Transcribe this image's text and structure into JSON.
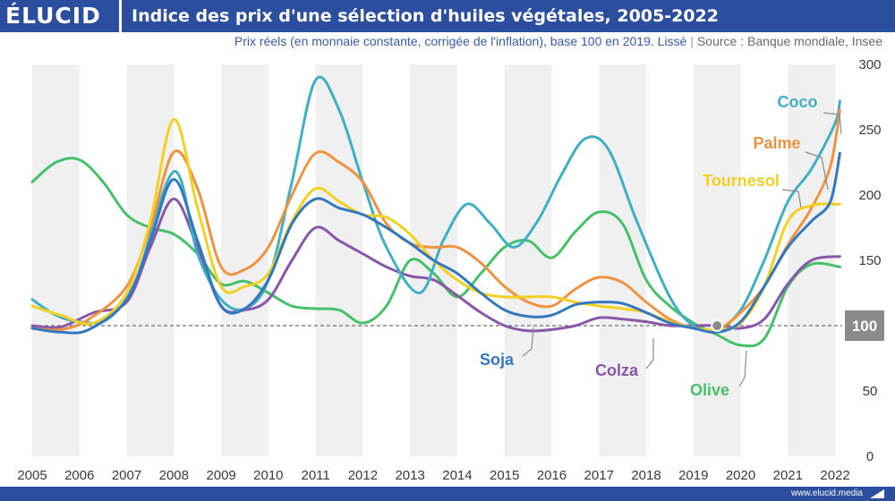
{
  "header": {
    "logo": "ÉLUCID",
    "title": "Indice des prix d'une sélection d'huiles végétales, 2005-2022"
  },
  "subtitle": {
    "text": "Prix réels (en monnaie constante, corrigée de l'inflation), base 100 en 2019. Lissé",
    "separator": "|",
    "source": "Source : Banque mondiale, Insee"
  },
  "footer": {
    "url": "www.elucid.media"
  },
  "chart_data": {
    "type": "line",
    "title": "Indice des prix d'une sélection d'huiles végétales, 2005-2022",
    "subtitle": "Prix réels (en monnaie constante, corrigée de l'inflation), base 100 en 2019. Lissé",
    "x_ticks": [
      "2005",
      "2006",
      "2007",
      "2008",
      "2009",
      "2010",
      "2011",
      "2012",
      "2013",
      "2014",
      "2015",
      "2016",
      "2017",
      "2018",
      "2019",
      "2020",
      "2021",
      "2022"
    ],
    "y_ticks": [
      "0",
      "50",
      "100",
      "150",
      "200",
      "250",
      "300"
    ],
    "xlim": [
      2005,
      2022.15
    ],
    "ylim": [
      0,
      300
    ],
    "grid": "alternating-columns",
    "baseline": {
      "value": 100,
      "label": "100",
      "style": "dashed"
    },
    "marker": {
      "x": 2019.5,
      "y": 100
    },
    "series": [
      {
        "name": "Coco",
        "color": "#3fb0c4",
        "points": [
          [
            2005,
            120
          ],
          [
            2005.5,
            108
          ],
          [
            2006,
            103
          ],
          [
            2006.6,
            105
          ],
          [
            2007.2,
            135
          ],
          [
            2008,
            218
          ],
          [
            2008.5,
            155
          ],
          [
            2009,
            120
          ],
          [
            2009.5,
            113
          ],
          [
            2010,
            135
          ],
          [
            2010.5,
            210
          ],
          [
            2011,
            288
          ],
          [
            2011.5,
            265
          ],
          [
            2012,
            210
          ],
          [
            2012.5,
            160
          ],
          [
            2013.2,
            125
          ],
          [
            2013.7,
            165
          ],
          [
            2014.2,
            193
          ],
          [
            2014.7,
            178
          ],
          [
            2015.2,
            160
          ],
          [
            2015.7,
            180
          ],
          [
            2016.2,
            215
          ],
          [
            2016.7,
            243
          ],
          [
            2017.2,
            235
          ],
          [
            2017.8,
            180
          ],
          [
            2018.5,
            122
          ],
          [
            2019,
            100
          ],
          [
            2019.5,
            97
          ],
          [
            2020,
            112
          ],
          [
            2020.5,
            150
          ],
          [
            2021,
            195
          ],
          [
            2021.5,
            220
          ],
          [
            2022,
            255
          ],
          [
            2022.1,
            272
          ]
        ]
      },
      {
        "name": "Palme",
        "color": "#ef9340",
        "points": [
          [
            2005,
            98
          ],
          [
            2005.6,
            97
          ],
          [
            2006.2,
            105
          ],
          [
            2007,
            130
          ],
          [
            2007.5,
            175
          ],
          [
            2008,
            233
          ],
          [
            2008.5,
            205
          ],
          [
            2009,
            145
          ],
          [
            2009.5,
            143
          ],
          [
            2010,
            160
          ],
          [
            2010.5,
            200
          ],
          [
            2011,
            232
          ],
          [
            2011.5,
            225
          ],
          [
            2012,
            210
          ],
          [
            2012.5,
            178
          ],
          [
            2013,
            163
          ],
          [
            2013.5,
            160
          ],
          [
            2014,
            160
          ],
          [
            2014.5,
            148
          ],
          [
            2015,
            130
          ],
          [
            2015.5,
            118
          ],
          [
            2016,
            115
          ],
          [
            2016.5,
            128
          ],
          [
            2017,
            137
          ],
          [
            2017.5,
            133
          ],
          [
            2018,
            118
          ],
          [
            2018.5,
            105
          ],
          [
            2019,
            98
          ],
          [
            2019.5,
            97
          ],
          [
            2020,
            110
          ],
          [
            2020.5,
            130
          ],
          [
            2021,
            162
          ],
          [
            2021.5,
            190
          ],
          [
            2021.9,
            222
          ],
          [
            2022.1,
            265
          ]
        ]
      },
      {
        "name": "Tournesol",
        "color": "#f2d122",
        "points": [
          [
            2005,
            115
          ],
          [
            2005.6,
            108
          ],
          [
            2006.3,
            102
          ],
          [
            2007,
            125
          ],
          [
            2007.5,
            180
          ],
          [
            2008,
            258
          ],
          [
            2008.5,
            190
          ],
          [
            2009,
            130
          ],
          [
            2009.5,
            130
          ],
          [
            2010,
            140
          ],
          [
            2010.5,
            180
          ],
          [
            2011,
            205
          ],
          [
            2011.5,
            195
          ],
          [
            2012,
            185
          ],
          [
            2012.5,
            183
          ],
          [
            2013,
            170
          ],
          [
            2013.5,
            150
          ],
          [
            2014,
            135
          ],
          [
            2014.5,
            125
          ],
          [
            2015,
            122
          ],
          [
            2015.5,
            122
          ],
          [
            2016,
            122
          ],
          [
            2016.5,
            118
          ],
          [
            2017,
            115
          ],
          [
            2017.5,
            113
          ],
          [
            2018,
            110
          ],
          [
            2018.5,
            103
          ],
          [
            2019,
            98
          ],
          [
            2019.5,
            97
          ],
          [
            2020,
            102
          ],
          [
            2020.5,
            130
          ],
          [
            2021,
            180
          ],
          [
            2021.5,
            192
          ],
          [
            2022.1,
            193
          ]
        ]
      },
      {
        "name": "Soja",
        "color": "#3278c1",
        "points": [
          [
            2005,
            98
          ],
          [
            2005.6,
            95
          ],
          [
            2006.2,
            97
          ],
          [
            2007,
            120
          ],
          [
            2007.5,
            165
          ],
          [
            2008,
            212
          ],
          [
            2008.5,
            165
          ],
          [
            2009,
            115
          ],
          [
            2009.5,
            113
          ],
          [
            2010,
            135
          ],
          [
            2010.5,
            178
          ],
          [
            2011,
            197
          ],
          [
            2011.5,
            190
          ],
          [
            2012,
            185
          ],
          [
            2012.5,
            175
          ],
          [
            2013,
            163
          ],
          [
            2013.5,
            150
          ],
          [
            2014,
            140
          ],
          [
            2014.5,
            125
          ],
          [
            2015,
            112
          ],
          [
            2015.5,
            107
          ],
          [
            2016,
            108
          ],
          [
            2016.5,
            116
          ],
          [
            2017,
            118
          ],
          [
            2017.5,
            117
          ],
          [
            2018,
            110
          ],
          [
            2018.5,
            102
          ],
          [
            2019,
            98
          ],
          [
            2019.5,
            95
          ],
          [
            2020,
            103
          ],
          [
            2020.5,
            130
          ],
          [
            2021,
            160
          ],
          [
            2021.5,
            180
          ],
          [
            2021.9,
            195
          ],
          [
            2022.1,
            232
          ]
        ]
      },
      {
        "name": "Colza",
        "color": "#8a56a8",
        "points": [
          [
            2005,
            100
          ],
          [
            2005.6,
            99
          ],
          [
            2006.3,
            110
          ],
          [
            2007,
            118
          ],
          [
            2007.5,
            160
          ],
          [
            2008,
            197
          ],
          [
            2008.5,
            160
          ],
          [
            2009,
            115
          ],
          [
            2009.5,
            112
          ],
          [
            2010,
            120
          ],
          [
            2010.5,
            150
          ],
          [
            2011,
            175
          ],
          [
            2011.5,
            165
          ],
          [
            2012,
            155
          ],
          [
            2012.5,
            145
          ],
          [
            2013,
            138
          ],
          [
            2013.5,
            135
          ],
          [
            2014,
            123
          ],
          [
            2014.5,
            110
          ],
          [
            2015,
            100
          ],
          [
            2015.5,
            96
          ],
          [
            2016,
            97
          ],
          [
            2016.5,
            100
          ],
          [
            2017,
            106
          ],
          [
            2017.5,
            105
          ],
          [
            2018,
            103
          ],
          [
            2018.5,
            100
          ],
          [
            2019,
            100
          ],
          [
            2019.5,
            100
          ],
          [
            2020,
            98
          ],
          [
            2020.5,
            105
          ],
          [
            2021,
            132
          ],
          [
            2021.5,
            150
          ],
          [
            2022.1,
            153
          ]
        ]
      },
      {
        "name": "Olive",
        "color": "#46c16a",
        "points": [
          [
            2005,
            210
          ],
          [
            2005.5,
            225
          ],
          [
            2006,
            227
          ],
          [
            2006.5,
            210
          ],
          [
            2007,
            185
          ],
          [
            2007.5,
            175
          ],
          [
            2008,
            170
          ],
          [
            2008.5,
            155
          ],
          [
            2009,
            132
          ],
          [
            2009.5,
            134
          ],
          [
            2010,
            125
          ],
          [
            2010.5,
            115
          ],
          [
            2011,
            113
          ],
          [
            2011.5,
            112
          ],
          [
            2012,
            102
          ],
          [
            2012.5,
            115
          ],
          [
            2013,
            150
          ],
          [
            2013.5,
            140
          ],
          [
            2014,
            122
          ],
          [
            2014.5,
            140
          ],
          [
            2015,
            160
          ],
          [
            2015.5,
            165
          ],
          [
            2016,
            152
          ],
          [
            2016.5,
            172
          ],
          [
            2017,
            187
          ],
          [
            2017.5,
            178
          ],
          [
            2018,
            135
          ],
          [
            2018.5,
            115
          ],
          [
            2019,
            102
          ],
          [
            2019.5,
            93
          ],
          [
            2020,
            85
          ],
          [
            2020.5,
            90
          ],
          [
            2021,
            130
          ],
          [
            2021.5,
            147
          ],
          [
            2022.1,
            145
          ]
        ]
      }
    ],
    "labels": [
      {
        "series": "Coco",
        "text": "Coco"
      },
      {
        "series": "Palme",
        "text": "Palme"
      },
      {
        "series": "Tournesol",
        "text": "Tournesol"
      },
      {
        "series": "Soja",
        "text": "Soja"
      },
      {
        "series": "Colza",
        "text": "Colza"
      },
      {
        "series": "Olive",
        "text": "Olive"
      }
    ]
  }
}
